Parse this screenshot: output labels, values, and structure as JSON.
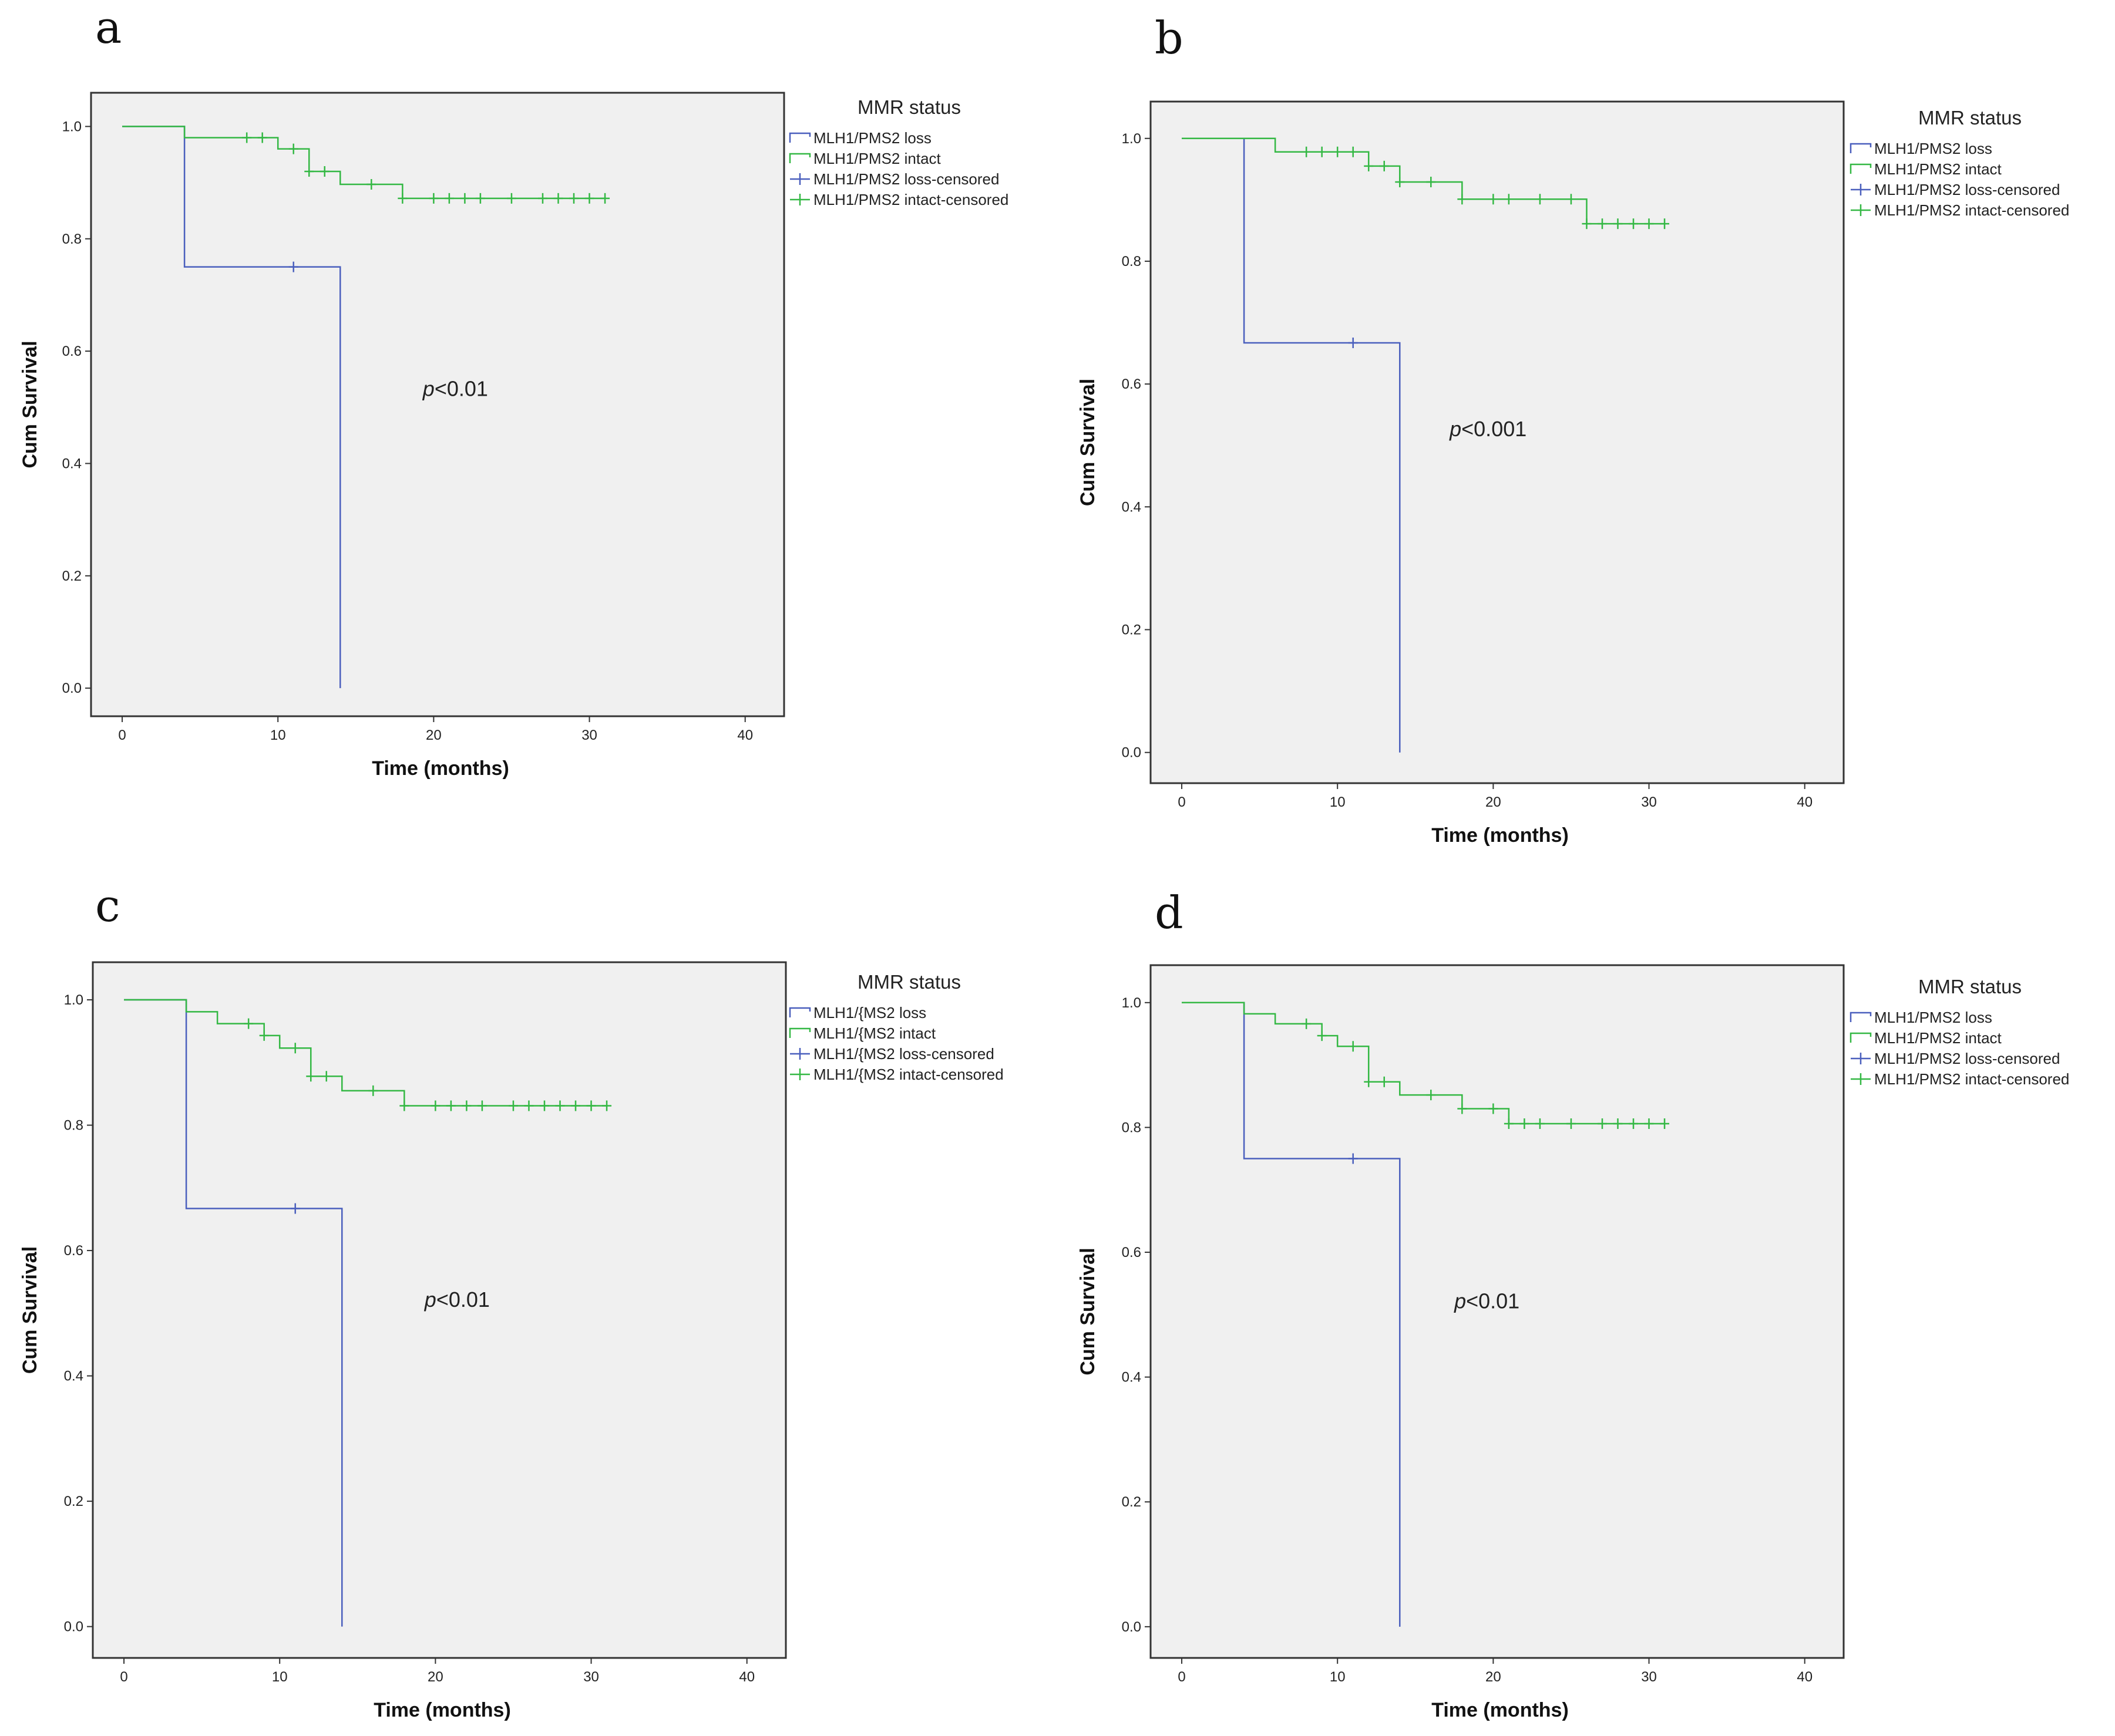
{
  "colors": {
    "loss": "#4a5fbd",
    "intact": "#34b844",
    "plot_bg": "#f0f0f0",
    "frame": "#333333"
  },
  "chart_data": [
    {
      "id": "a",
      "type": "line",
      "panel_label": "a",
      "xlabel": "Time (months)",
      "ylabel": "Cum Survival",
      "xlim": [
        -2,
        42.5
      ],
      "ylim": [
        -0.05,
        1.06
      ],
      "xticks": [
        0,
        10,
        20,
        30,
        40
      ],
      "yticks": [
        0.0,
        0.2,
        0.4,
        0.6,
        0.8,
        1.0
      ],
      "xtick_labels": [
        "0",
        "10",
        "20",
        "30",
        "40"
      ],
      "ytick_labels": [
        "0.0",
        "0.2",
        "0.4",
        "0.6",
        "0.8",
        "1.0"
      ],
      "annotation": {
        "text": "p<0.01",
        "x": 19.3,
        "y": 0.52
      },
      "legend": {
        "title": "MMR status",
        "entries": [
          "MLH1/PMS2 loss",
          "MLH1/PMS2 intact",
          "MLH1/PMS2 loss-censored",
          "MLH1/PMS2 intact-censored"
        ]
      },
      "series": [
        {
          "name": "MLH1/PMS2 loss",
          "color_key": "loss",
          "steps": [
            [
              0,
              1.0
            ],
            [
              4,
              0.75
            ],
            [
              14,
              0.0
            ]
          ],
          "end_x": 14,
          "censored": [
            [
              11,
              0.75
            ]
          ]
        },
        {
          "name": "MLH1/PMS2 intact",
          "color_key": "intact",
          "steps": [
            [
              0,
              1.0
            ],
            [
              4,
              0.98
            ],
            [
              10,
              0.96
            ],
            [
              12,
              0.92
            ],
            [
              14,
              0.897
            ],
            [
              18,
              0.872
            ]
          ],
          "end_x": 31,
          "censored": [
            [
              8,
              0.98
            ],
            [
              9,
              0.98
            ],
            [
              11,
              0.96
            ],
            [
              12,
              0.92
            ],
            [
              13,
              0.92
            ],
            [
              16,
              0.897
            ],
            [
              18,
              0.872
            ],
            [
              20,
              0.872
            ],
            [
              21,
              0.872
            ],
            [
              22,
              0.872
            ],
            [
              23,
              0.872
            ],
            [
              25,
              0.872
            ],
            [
              27,
              0.872
            ],
            [
              28,
              0.872
            ],
            [
              29,
              0.872
            ],
            [
              30,
              0.872
            ],
            [
              31,
              0.872
            ]
          ]
        }
      ]
    },
    {
      "id": "b",
      "type": "line",
      "panel_label": "b",
      "xlabel": "Time (months)",
      "ylabel": "Cum Survival",
      "xlim": [
        -2,
        42.5
      ],
      "ylim": [
        -0.05,
        1.06
      ],
      "xticks": [
        0,
        10,
        20,
        30,
        40
      ],
      "yticks": [
        0.0,
        0.2,
        0.4,
        0.6,
        0.8,
        1.0
      ],
      "xtick_labels": [
        "0",
        "10",
        "20",
        "30",
        "40"
      ],
      "ytick_labels": [
        "0.0",
        "0.2",
        "0.4",
        "0.6",
        "0.8",
        "1.0"
      ],
      "annotation": {
        "text": "p<0.001",
        "x": 17.2,
        "y": 0.515
      },
      "legend": {
        "title": "MMR status",
        "entries": [
          "MLH1/PMS2 loss",
          "MLH1/PMS2 intact",
          "MLH1/PMS2 loss-censored",
          "MLH1/PMS2 intact-censored"
        ]
      },
      "series": [
        {
          "name": "MLH1/PMS2 loss",
          "color_key": "loss",
          "steps": [
            [
              0,
              1.0
            ],
            [
              4,
              0.667
            ],
            [
              14,
              0.0
            ]
          ],
          "end_x": 14,
          "censored": [
            [
              11,
              0.667
            ]
          ]
        },
        {
          "name": "MLH1/PMS2 intact",
          "color_key": "intact",
          "steps": [
            [
              0,
              1.0
            ],
            [
              6,
              0.978
            ],
            [
              12,
              0.955
            ],
            [
              14,
              0.929
            ],
            [
              18,
              0.901
            ],
            [
              26,
              0.861
            ]
          ],
          "end_x": 31,
          "censored": [
            [
              8,
              0.978
            ],
            [
              9,
              0.978
            ],
            [
              10,
              0.978
            ],
            [
              11,
              0.978
            ],
            [
              12,
              0.955
            ],
            [
              13,
              0.955
            ],
            [
              14,
              0.929
            ],
            [
              16,
              0.929
            ],
            [
              18,
              0.901
            ],
            [
              20,
              0.901
            ],
            [
              21,
              0.901
            ],
            [
              23,
              0.901
            ],
            [
              25,
              0.901
            ],
            [
              26,
              0.861
            ],
            [
              27,
              0.861
            ],
            [
              28,
              0.861
            ],
            [
              29,
              0.861
            ],
            [
              30,
              0.861
            ],
            [
              31,
              0.861
            ]
          ]
        }
      ]
    },
    {
      "id": "c",
      "type": "line",
      "panel_label": "c",
      "xlabel": "Time (months)",
      "ylabel": "Cum Survival",
      "xlim": [
        -2,
        42.5
      ],
      "ylim": [
        -0.05,
        1.06
      ],
      "xticks": [
        0,
        10,
        20,
        30,
        40
      ],
      "yticks": [
        0.0,
        0.2,
        0.4,
        0.6,
        0.8,
        1.0
      ],
      "xtick_labels": [
        "0",
        "10",
        "20",
        "30",
        "40"
      ],
      "ytick_labels": [
        "0.0",
        "0.2",
        "0.4",
        "0.6",
        "0.8",
        "1.0"
      ],
      "annotation": {
        "text": "p<0.01",
        "x": 19.3,
        "y": 0.51
      },
      "legend": {
        "title": "MMR status",
        "entries": [
          "MLH1/{MS2 loss",
          "MLH1/{MS2 intact",
          "MLH1/{MS2 loss-censored",
          "MLH1/{MS2 intact-censored"
        ]
      },
      "series": [
        {
          "name": "MLH1/{MS2 loss",
          "color_key": "loss",
          "steps": [
            [
              0,
              1.0
            ],
            [
              4,
              0.667
            ],
            [
              14,
              0.0
            ]
          ],
          "end_x": 14,
          "censored": [
            [
              11,
              0.667
            ]
          ]
        },
        {
          "name": "MLH1/{MS2 intact",
          "color_key": "intact",
          "steps": [
            [
              0,
              1.0
            ],
            [
              4,
              0.981
            ],
            [
              6,
              0.962
            ],
            [
              9,
              0.943
            ],
            [
              10,
              0.923
            ],
            [
              12,
              0.878
            ],
            [
              14,
              0.855
            ],
            [
              18,
              0.831
            ]
          ],
          "end_x": 31,
          "censored": [
            [
              8,
              0.962
            ],
            [
              9,
              0.943
            ],
            [
              11,
              0.923
            ],
            [
              12,
              0.878
            ],
            [
              13,
              0.878
            ],
            [
              16,
              0.855
            ],
            [
              18,
              0.831
            ],
            [
              20,
              0.831
            ],
            [
              21,
              0.831
            ],
            [
              22,
              0.831
            ],
            [
              23,
              0.831
            ],
            [
              25,
              0.831
            ],
            [
              26,
              0.831
            ],
            [
              27,
              0.831
            ],
            [
              28,
              0.831
            ],
            [
              29,
              0.831
            ],
            [
              30,
              0.831
            ],
            [
              31,
              0.831
            ]
          ]
        }
      ]
    },
    {
      "id": "d",
      "type": "line",
      "panel_label": "d",
      "xlabel": "Time (months)",
      "ylabel": "Cum Survival",
      "xlim": [
        -2,
        42.5
      ],
      "ylim": [
        -0.05,
        1.06
      ],
      "xticks": [
        0,
        10,
        20,
        30,
        40
      ],
      "yticks": [
        0.0,
        0.2,
        0.4,
        0.6,
        0.8,
        1.0
      ],
      "xtick_labels": [
        "0",
        "10",
        "20",
        "30",
        "40"
      ],
      "ytick_labels": [
        "0.0",
        "0.2",
        "0.4",
        "0.6",
        "0.8",
        "1.0"
      ],
      "annotation": {
        "text": "p<0.01",
        "x": 17.5,
        "y": 0.51
      },
      "legend": {
        "title": "MMR status",
        "entries": [
          "MLH1/PMS2 loss",
          "MLH1/PMS2 intact",
          "MLH1/PMS2 loss-censored",
          "MLH1/PMS2 intact-censored"
        ]
      },
      "series": [
        {
          "name": "MLH1/PMS2 loss",
          "color_key": "loss",
          "steps": [
            [
              0,
              1.0
            ],
            [
              4,
              0.75
            ],
            [
              14,
              0.0
            ]
          ],
          "end_x": 14,
          "censored": [
            [
              11,
              0.75
            ]
          ]
        },
        {
          "name": "MLH1/PMS2 intact",
          "color_key": "intact",
          "steps": [
            [
              0,
              1.0
            ],
            [
              4,
              0.982
            ],
            [
              6,
              0.966
            ],
            [
              9,
              0.947
            ],
            [
              10,
              0.93
            ],
            [
              12,
              0.873
            ],
            [
              14,
              0.852
            ],
            [
              18,
              0.83
            ],
            [
              21,
              0.806
            ]
          ],
          "end_x": 31,
          "censored": [
            [
              8,
              0.966
            ],
            [
              9,
              0.947
            ],
            [
              11,
              0.93
            ],
            [
              12,
              0.873
            ],
            [
              13,
              0.873
            ],
            [
              16,
              0.852
            ],
            [
              18,
              0.83
            ],
            [
              20,
              0.83
            ],
            [
              21,
              0.806
            ],
            [
              22,
              0.806
            ],
            [
              23,
              0.806
            ],
            [
              25,
              0.806
            ],
            [
              27,
              0.806
            ],
            [
              28,
              0.806
            ],
            [
              29,
              0.806
            ],
            [
              30,
              0.806
            ],
            [
              31,
              0.806
            ]
          ]
        }
      ]
    }
  ]
}
